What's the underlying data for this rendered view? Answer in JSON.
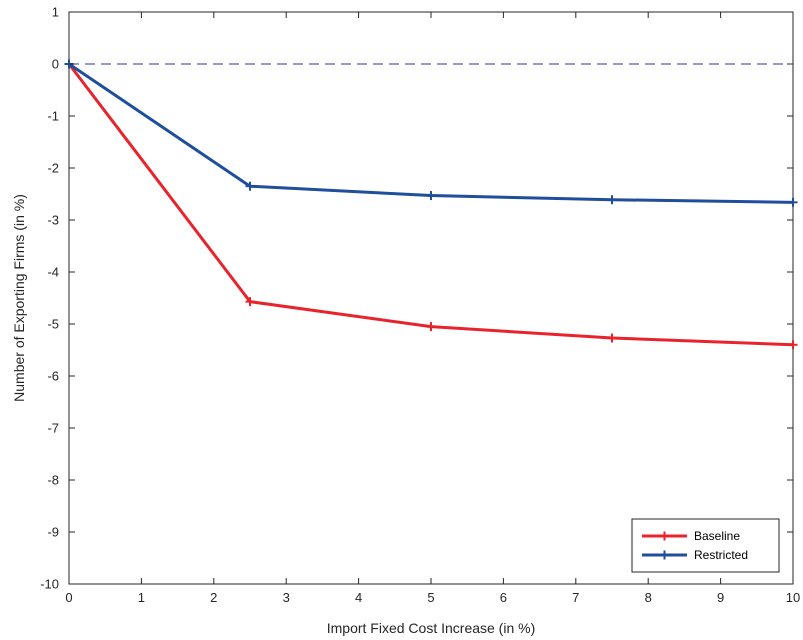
{
  "chart_data": {
    "type": "line",
    "title": "",
    "xlabel": "Import Fixed Cost Increase (in %)",
    "ylabel": "Number of Exporting Firms (in %)",
    "xlim": [
      0,
      10
    ],
    "ylim": [
      -10,
      1
    ],
    "xticks": [
      "0",
      "1",
      "2",
      "3",
      "4",
      "5",
      "6",
      "7",
      "8",
      "9",
      "10"
    ],
    "yticks": [
      "1",
      "0",
      "-1",
      "-2",
      "-3",
      "-4",
      "-5",
      "-6",
      "-7",
      "-8",
      "-9",
      "-10"
    ],
    "grid": false,
    "legend_position": "bottom-right",
    "reference_line": {
      "y": 0,
      "style": "dashed",
      "color": "#2b3990"
    },
    "series": [
      {
        "name": "Baseline",
        "color": "#e8232b",
        "x": [
          0,
          2.5,
          5,
          7.5,
          10
        ],
        "y": [
          0,
          -4.57,
          -5.05,
          -5.27,
          -5.4
        ]
      },
      {
        "name": "Restricted",
        "color": "#1f4e9c",
        "x": [
          0,
          2.5,
          5,
          7.5,
          10
        ],
        "y": [
          0,
          -2.35,
          -2.53,
          -2.61,
          -2.66
        ]
      }
    ]
  }
}
